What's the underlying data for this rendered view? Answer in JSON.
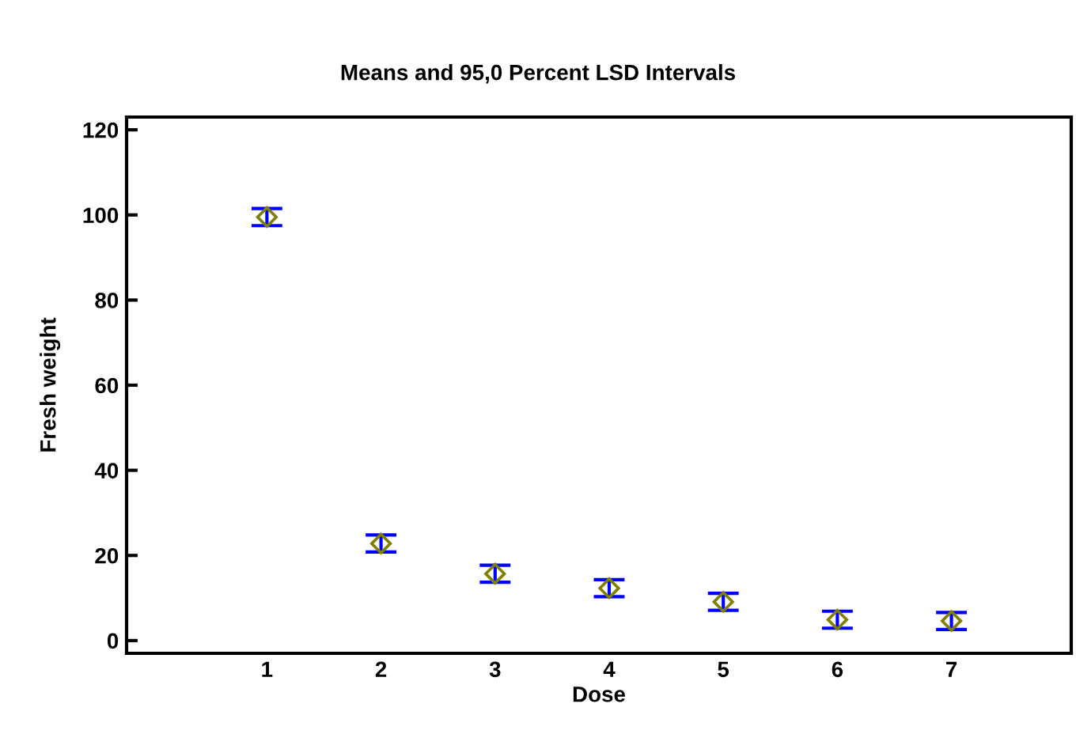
{
  "chart_data": {
    "type": "scatter",
    "title": "Means and 95,0 Percent LSD Intervals",
    "xlabel": "Dose",
    "ylabel": "Fresh weight",
    "x": [
      1,
      2,
      3,
      4,
      5,
      6,
      7
    ],
    "series": [
      {
        "color": "#808000",
        "values": [
          99.5,
          22.8,
          15.7,
          12.3,
          9.1,
          4.9,
          4.6
        ],
        "errors": [
          2,
          2,
          2,
          2,
          2,
          2,
          2
        ]
      }
    ],
    "xlim": [
      -0.23,
      8.05
    ],
    "xticks": [
      1,
      2,
      3,
      4,
      5,
      6,
      7
    ],
    "ylim": [
      -3,
      123
    ],
    "yticks": [
      0,
      20,
      40,
      60,
      80,
      100,
      120
    ],
    "marker": "diamond",
    "grid": false,
    "legend": false
  }
}
